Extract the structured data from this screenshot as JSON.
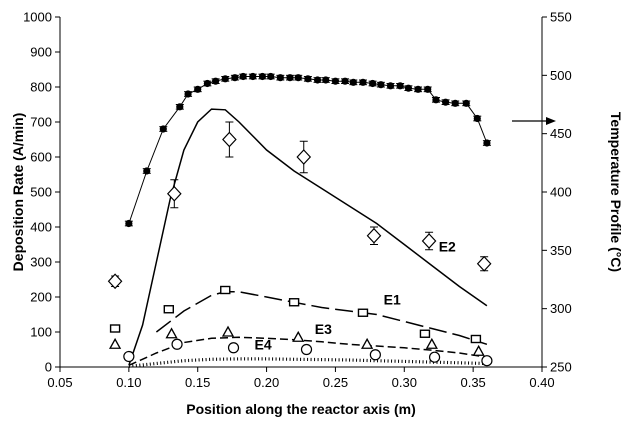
{
  "chart_data": {
    "type": "line",
    "title": "",
    "xlabel": "Position along the reactor axis (m)",
    "ylabel": "Deposition Rate (A/min)",
    "y2label": "Temperature Profile (°C)",
    "xlim": [
      0.05,
      0.4
    ],
    "ylim": [
      0,
      1000
    ],
    "y2lim": [
      250,
      550
    ],
    "xticks": [
      "0.05",
      "0.10",
      "0.15",
      "0.20",
      "0.25",
      "0.30",
      "0.35",
      "0.40"
    ],
    "yticks": [
      "0",
      "100",
      "200",
      "300",
      "400",
      "500",
      "600",
      "700",
      "800",
      "900",
      "1000"
    ],
    "y2ticks": [
      "250",
      "300",
      "350",
      "400",
      "450",
      "500",
      "550"
    ],
    "grid": false,
    "series": [
      {
        "name": "",
        "kind": "temperature",
        "axis": "right",
        "marker": "filled-circle",
        "x": [
          0.1,
          0.113,
          0.125,
          0.137,
          0.143,
          0.15,
          0.157,
          0.163,
          0.17,
          0.177,
          0.183,
          0.19,
          0.197,
          0.203,
          0.21,
          0.217,
          0.223,
          0.23,
          0.237,
          0.243,
          0.25,
          0.257,
          0.263,
          0.27,
          0.277,
          0.283,
          0.29,
          0.297,
          0.303,
          0.31,
          0.317,
          0.323,
          0.33,
          0.337,
          0.345,
          0.353,
          0.36
        ],
        "values": [
          373,
          418,
          454,
          473,
          484,
          488,
          493,
          495,
          497,
          498,
          499,
          499,
          499,
          499,
          498,
          498,
          498,
          497,
          496,
          496,
          495,
          495,
          494,
          494,
          493,
          492,
          491,
          491,
          489,
          488,
          488,
          479,
          477,
          476,
          476,
          463,
          442
        ],
        "errors": [
          2,
          2,
          2,
          2,
          2,
          2,
          2,
          2,
          2,
          2,
          2,
          2,
          2,
          2,
          2,
          2,
          2,
          2,
          2,
          2,
          2,
          2,
          2,
          2,
          2,
          2,
          2,
          2,
          2,
          2,
          2,
          2,
          2,
          2,
          2,
          2,
          2
        ]
      },
      {
        "name": "E2",
        "kind": "experimental",
        "marker": "diamond",
        "x": [
          0.09,
          0.133,
          0.173,
          0.227,
          0.278,
          0.318,
          0.358
        ],
        "values": [
          245,
          495,
          650,
          600,
          375,
          360,
          295
        ],
        "errors": [
          15,
          40,
          50,
          45,
          25,
          25,
          20
        ]
      },
      {
        "name": "E2",
        "kind": "model",
        "line": "solid",
        "x": [
          0.1,
          0.11,
          0.12,
          0.13,
          0.14,
          0.15,
          0.16,
          0.17,
          0.18,
          0.19,
          0.2,
          0.22,
          0.24,
          0.26,
          0.28,
          0.3,
          0.32,
          0.34,
          0.36
        ],
        "values": [
          5,
          120,
          300,
          480,
          620,
          700,
          737,
          735,
          700,
          660,
          620,
          560,
          510,
          460,
          410,
          350,
          290,
          230,
          175
        ]
      },
      {
        "name": "E1",
        "kind": "experimental",
        "marker": "square",
        "x": [
          0.09,
          0.129,
          0.17,
          0.22,
          0.27,
          0.315,
          0.352
        ],
        "values": [
          110,
          165,
          220,
          185,
          155,
          95,
          80
        ]
      },
      {
        "name": "E1",
        "kind": "model",
        "line": "long-dash",
        "x": [
          0.12,
          0.14,
          0.16,
          0.17,
          0.18,
          0.2,
          0.22,
          0.24,
          0.26,
          0.28,
          0.3,
          0.32,
          0.34,
          0.36
        ],
        "values": [
          100,
          160,
          205,
          215,
          215,
          200,
          185,
          170,
          160,
          150,
          130,
          110,
          90,
          65
        ]
      },
      {
        "name": "E3",
        "kind": "experimental",
        "marker": "triangle",
        "x": [
          0.09,
          0.131,
          0.172,
          0.223,
          0.273,
          0.32,
          0.354
        ],
        "values": [
          65,
          95,
          100,
          85,
          65,
          65,
          45
        ]
      },
      {
        "name": "E3",
        "kind": "model",
        "line": "short-dash",
        "x": [
          0.1,
          0.12,
          0.14,
          0.16,
          0.18,
          0.2,
          0.22,
          0.24,
          0.26,
          0.28,
          0.3,
          0.32,
          0.34,
          0.36
        ],
        "values": [
          5,
          40,
          70,
          82,
          85,
          82,
          78,
          72,
          65,
          60,
          55,
          48,
          40,
          28
        ]
      },
      {
        "name": "E4",
        "kind": "experimental",
        "marker": "circle",
        "x": [
          0.1,
          0.135,
          0.176,
          0.229,
          0.279,
          0.322,
          0.36
        ],
        "values": [
          30,
          65,
          55,
          50,
          35,
          28,
          18
        ]
      },
      {
        "name": "E4",
        "kind": "model",
        "line": "dotted",
        "x": [
          0.1,
          0.12,
          0.14,
          0.16,
          0.18,
          0.2,
          0.22,
          0.24,
          0.26,
          0.28,
          0.3,
          0.32,
          0.34,
          0.36
        ],
        "values": [
          2,
          10,
          18,
          22,
          23,
          23,
          22,
          21,
          20,
          18,
          16,
          14,
          12,
          10
        ]
      }
    ],
    "annotations": [
      "E1",
      "E2",
      "E3",
      "E4"
    ]
  }
}
